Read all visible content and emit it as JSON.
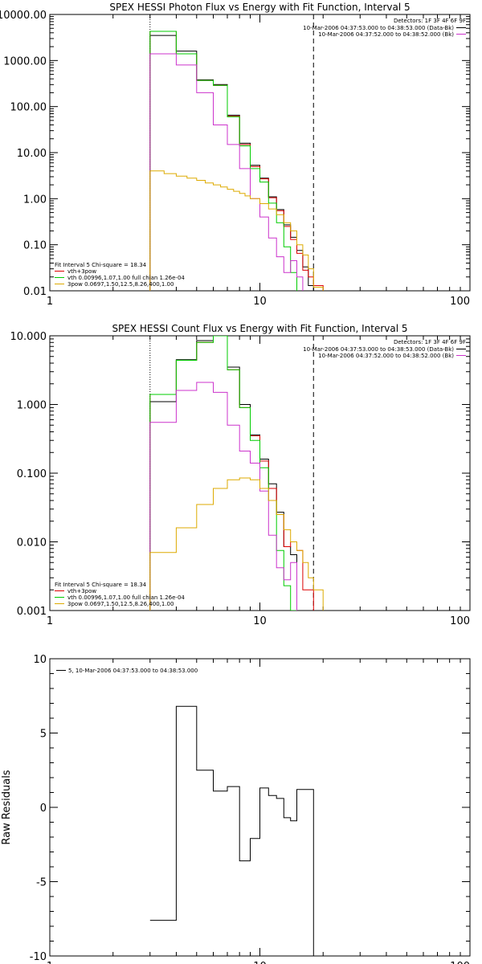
{
  "chart_data": [
    {
      "type": "line",
      "title": "SPEX HESSI Photon Flux vs Energy with Fit Function, Interval 5",
      "xscale": "log",
      "yscale": "log",
      "xlim": [
        1,
        100
      ],
      "ylim": [
        0.01,
        10000
      ],
      "xticks": [
        {
          "v": 1,
          "label": "1"
        },
        {
          "v": 10,
          "label": "10"
        },
        {
          "v": 100,
          "label": "100"
        }
      ],
      "yticks": [
        {
          "v": 0.01,
          "label": "0.01"
        },
        {
          "v": 0.1,
          "label": "0.10"
        },
        {
          "v": 1,
          "label": "1.00"
        },
        {
          "v": 10,
          "label": "10.00"
        },
        {
          "v": 100,
          "label": "100.00"
        },
        {
          "v": 1000,
          "label": "1000.00"
        },
        {
          "v": 10000,
          "label": "10000.00"
        }
      ],
      "detectors_label": "Detectors: 1F 3F 4F 6F 9F",
      "top_legend": [
        {
          "text": "10-Mar-2006 04:37:53.000 to 04:38:53.000 (Data-Bk)",
          "color": "#000000"
        },
        {
          "text": "10-Mar-2006 04:37:52.000 to 04:38:52.000 (Bk)",
          "color": "#cc33cc"
        }
      ],
      "fit_legend_header": "Fit Interval 5   Chi-square = 18.34",
      "fit_legend": [
        {
          "text": "vth+3pow",
          "color": "#dd0000"
        },
        {
          "text": "vth 0.00996,1.07,1.00  full chian 1.26e-04",
          "color": "#00cc00"
        },
        {
          "text": "3pow 0.0697,1.50,12.5,8.26,400,1.00",
          "color": "#ddaa00"
        }
      ],
      "vlines": [
        {
          "x": 3.0,
          "style": "dotted"
        },
        {
          "x": 18.0,
          "style": "dashed"
        }
      ],
      "edges": [
        3.0,
        3.5,
        4.0,
        4.5,
        5.0,
        5.5,
        6.0,
        6.5,
        7.0,
        7.5,
        8.0,
        8.5,
        9.0,
        10.0,
        11.0,
        12.0,
        13.0,
        14.0,
        15.0,
        16.0,
        17.0,
        18.0,
        20.0
      ],
      "series": [
        {
          "color": "#000000",
          "values": [
            3500,
            3500,
            1600,
            1600,
            380,
            380,
            300,
            300,
            65,
            65,
            16,
            16,
            5.3,
            2.8,
            1.1,
            0.58,
            0.27,
            0.145,
            0.075,
            0.033,
            0.013,
            null
          ]
        },
        {
          "color": "#dd0000",
          "values": [
            4300,
            4300,
            1400,
            1400,
            370,
            370,
            290,
            290,
            62,
            62,
            15,
            15,
            5.0,
            2.7,
            1.05,
            0.55,
            0.25,
            0.13,
            0.065,
            0.028,
            0.02,
            0.013
          ]
        },
        {
          "color": "#00cc00",
          "values": [
            4300,
            4300,
            1400,
            1400,
            370,
            370,
            290,
            290,
            60,
            60,
            14,
            14,
            4.5,
            2.3,
            0.8,
            0.3,
            0.09,
            0.025,
            0.008,
            null,
            null,
            null
          ]
        },
        {
          "color": "#cc33cc",
          "values": [
            1400,
            1400,
            800,
            800,
            200,
            200,
            40,
            40,
            15,
            15,
            4.5,
            4.5,
            1.0,
            0.4,
            0.14,
            0.055,
            0.025,
            0.045,
            0.02,
            null,
            null,
            null
          ]
        },
        {
          "color": "#ddaa00",
          "values": [
            4.0,
            3.5,
            3.1,
            2.8,
            2.5,
            2.2,
            2.0,
            1.8,
            1.6,
            1.45,
            1.3,
            1.15,
            1.0,
            0.78,
            0.6,
            0.45,
            0.3,
            0.2,
            0.1,
            0.06,
            0.03,
            0.012
          ]
        }
      ]
    },
    {
      "type": "line",
      "title": "SPEX HESSI Count Flux vs Energy with Fit Function, Interval 5",
      "xscale": "log",
      "yscale": "log",
      "xlim": [
        1,
        100
      ],
      "ylim": [
        0.001,
        10
      ],
      "xticks": [
        {
          "v": 1,
          "label": "1"
        },
        {
          "v": 10,
          "label": "10"
        },
        {
          "v": 100,
          "label": "100"
        }
      ],
      "yticks": [
        {
          "v": 0.001,
          "label": "0.001"
        },
        {
          "v": 0.01,
          "label": "0.010"
        },
        {
          "v": 0.1,
          "label": "0.100"
        },
        {
          "v": 1,
          "label": "1.000"
        },
        {
          "v": 10,
          "label": "10.000"
        }
      ],
      "detectors_label": "Detectors: 1F 3F 4F 6F 9F",
      "top_legend": [
        {
          "text": "10-Mar-2006 04:37:53.000 to 04:38:53.000 (Data-Bk)",
          "color": "#000000"
        },
        {
          "text": "10-Mar-2006 04:37:52.000 to 04:38:52.000 (Bk)",
          "color": "#cc33cc"
        }
      ],
      "fit_legend_header": "Fit Interval 5   Chi-square = 18.34",
      "fit_legend": [
        {
          "text": "vth+3pow",
          "color": "#dd0000"
        },
        {
          "text": "vth 0.00996,1.07,1.00  full chian 1.26e-04",
          "color": "#00cc00"
        },
        {
          "text": "3pow 0.0697,1.50,12.5,8.26,400,1.00",
          "color": "#ddaa00"
        }
      ],
      "vlines": [
        {
          "x": 3.0,
          "style": "dotted"
        },
        {
          "x": 18.0,
          "style": "dashed"
        }
      ],
      "edges": [
        3.0,
        3.5,
        4.0,
        4.5,
        5.0,
        5.5,
        6.0,
        6.5,
        7.0,
        7.5,
        8.0,
        8.5,
        9.0,
        10.0,
        11.0,
        12.0,
        13.0,
        14.0,
        15.0,
        16.0,
        17.0,
        18.0,
        20.0
      ],
      "series": [
        {
          "color": "#000000",
          "values": [
            1.1,
            1.1,
            4.5,
            4.5,
            8.5,
            8.5,
            10.5,
            10.5,
            3.5,
            3.5,
            1.0,
            1.0,
            0.36,
            0.16,
            0.07,
            0.027,
            0.0085,
            0.0065,
            null,
            null,
            null,
            null
          ]
        },
        {
          "color": "#dd0000",
          "values": [
            1.4,
            1.4,
            4.4,
            4.4,
            8.0,
            8.0,
            10.0,
            10.0,
            3.2,
            3.2,
            0.9,
            0.9,
            0.35,
            0.15,
            0.06,
            0.025,
            0.0085,
            0.01,
            0.0075,
            0.002,
            0.002,
            null
          ]
        },
        {
          "color": "#00cc00",
          "values": [
            1.4,
            1.4,
            4.4,
            4.4,
            8.0,
            8.0,
            10.0,
            10.0,
            3.2,
            3.2,
            0.9,
            0.9,
            0.3,
            0.12,
            0.04,
            0.0075,
            0.0023,
            0.001,
            null,
            null,
            null,
            null
          ]
        },
        {
          "color": "#cc33cc",
          "values": [
            0.55,
            0.55,
            1.6,
            1.6,
            2.1,
            2.1,
            1.5,
            1.5,
            0.5,
            0.5,
            0.21,
            0.21,
            0.14,
            0.055,
            0.0125,
            0.0042,
            0.0028,
            0.005,
            null,
            null,
            null,
            null
          ]
        },
        {
          "color": "#ddaa00",
          "values": [
            0.007,
            0.007,
            0.016,
            0.016,
            0.035,
            0.035,
            0.06,
            0.06,
            0.08,
            0.08,
            0.085,
            0.085,
            0.08,
            0.06,
            0.04,
            0.025,
            0.015,
            0.01,
            0.0075,
            0.005,
            0.003,
            0.002
          ]
        }
      ]
    },
    {
      "type": "line",
      "title": "",
      "ylabel": "Raw Residuals",
      "xscale": "log",
      "yscale": "linear",
      "xlim": [
        1,
        100
      ],
      "ylim": [
        -10,
        10
      ],
      "xticks": [
        {
          "v": 1,
          "label": "1"
        },
        {
          "v": 10,
          "label": "10"
        },
        {
          "v": 100,
          "label": "100"
        }
      ],
      "yticks": [
        {
          "v": -10,
          "label": "-10"
        },
        {
          "v": -5,
          "label": "-5"
        },
        {
          "v": 0,
          "label": "0"
        },
        {
          "v": 5,
          "label": "5"
        },
        {
          "v": 10,
          "label": "10"
        }
      ],
      "legend": [
        {
          "text": "5, 10-Mar-2006 04:37:53.000 to 04:38:53.000",
          "color": "#000000"
        }
      ],
      "edges": [
        3.0,
        3.5,
        4.0,
        4.5,
        5.0,
        5.5,
        6.0,
        6.5,
        7.0,
        7.5,
        8.0,
        8.5,
        9.0,
        10.0,
        11.0,
        12.0,
        13.0,
        14.0,
        15.0,
        16.0,
        17.0,
        18.0
      ],
      "series": [
        {
          "color": "#000000",
          "values": [
            -7.6,
            -7.6,
            6.8,
            6.8,
            2.5,
            2.5,
            1.1,
            1.1,
            1.4,
            1.4,
            -3.6,
            -3.6,
            -2.1,
            1.3,
            0.8,
            0.6,
            -0.7,
            -0.9,
            1.2,
            1.2,
            1.2
          ]
        }
      ]
    }
  ]
}
